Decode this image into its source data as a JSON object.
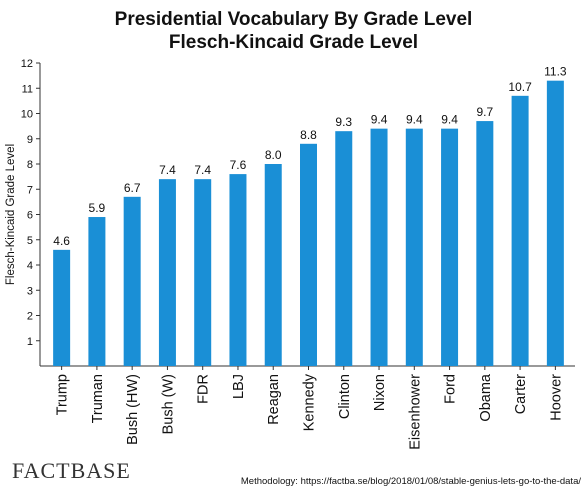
{
  "chart_data": {
    "type": "bar",
    "title": "Presidential Vocabulary By Grade Level",
    "subtitle": "Flesch-Kincaid Grade Level",
    "xlabel": "",
    "ylabel": "Flesch-Kincaid Grade Level",
    "ylim": [
      0,
      12
    ],
    "yticks": [
      "1",
      "2",
      "3",
      "4",
      "5",
      "6",
      "7",
      "8",
      "9",
      "10",
      "11",
      "12"
    ],
    "grid": false,
    "categories": [
      "Trump",
      "Truman",
      "Bush (HW)",
      "Bush (W)",
      "FDR",
      "LBJ",
      "Reagan",
      "Kennedy",
      "Clinton",
      "Nixon",
      "Eisenhower",
      "Ford",
      "Obama",
      "Carter",
      "Hoover"
    ],
    "values": [
      4.6,
      5.9,
      6.7,
      7.4,
      7.4,
      7.6,
      8.0,
      8.8,
      9.3,
      9.4,
      9.4,
      9.4,
      9.7,
      10.7,
      11.3
    ],
    "value_labels": [
      "4.6",
      "5.9",
      "6.7",
      "7.4",
      "7.4",
      "7.6",
      "8.0",
      "8.8",
      "9.3",
      "9.4",
      "9.4",
      "9.4",
      "9.7",
      "10.7",
      "11.3"
    ],
    "bar_color": "#1a8fd6"
  },
  "footer": {
    "brand": "FACTBASE",
    "methodology": "Methodology: https://factba.se/blog/2018/01/08/stable-genius-lets-go-to-the-data/"
  }
}
